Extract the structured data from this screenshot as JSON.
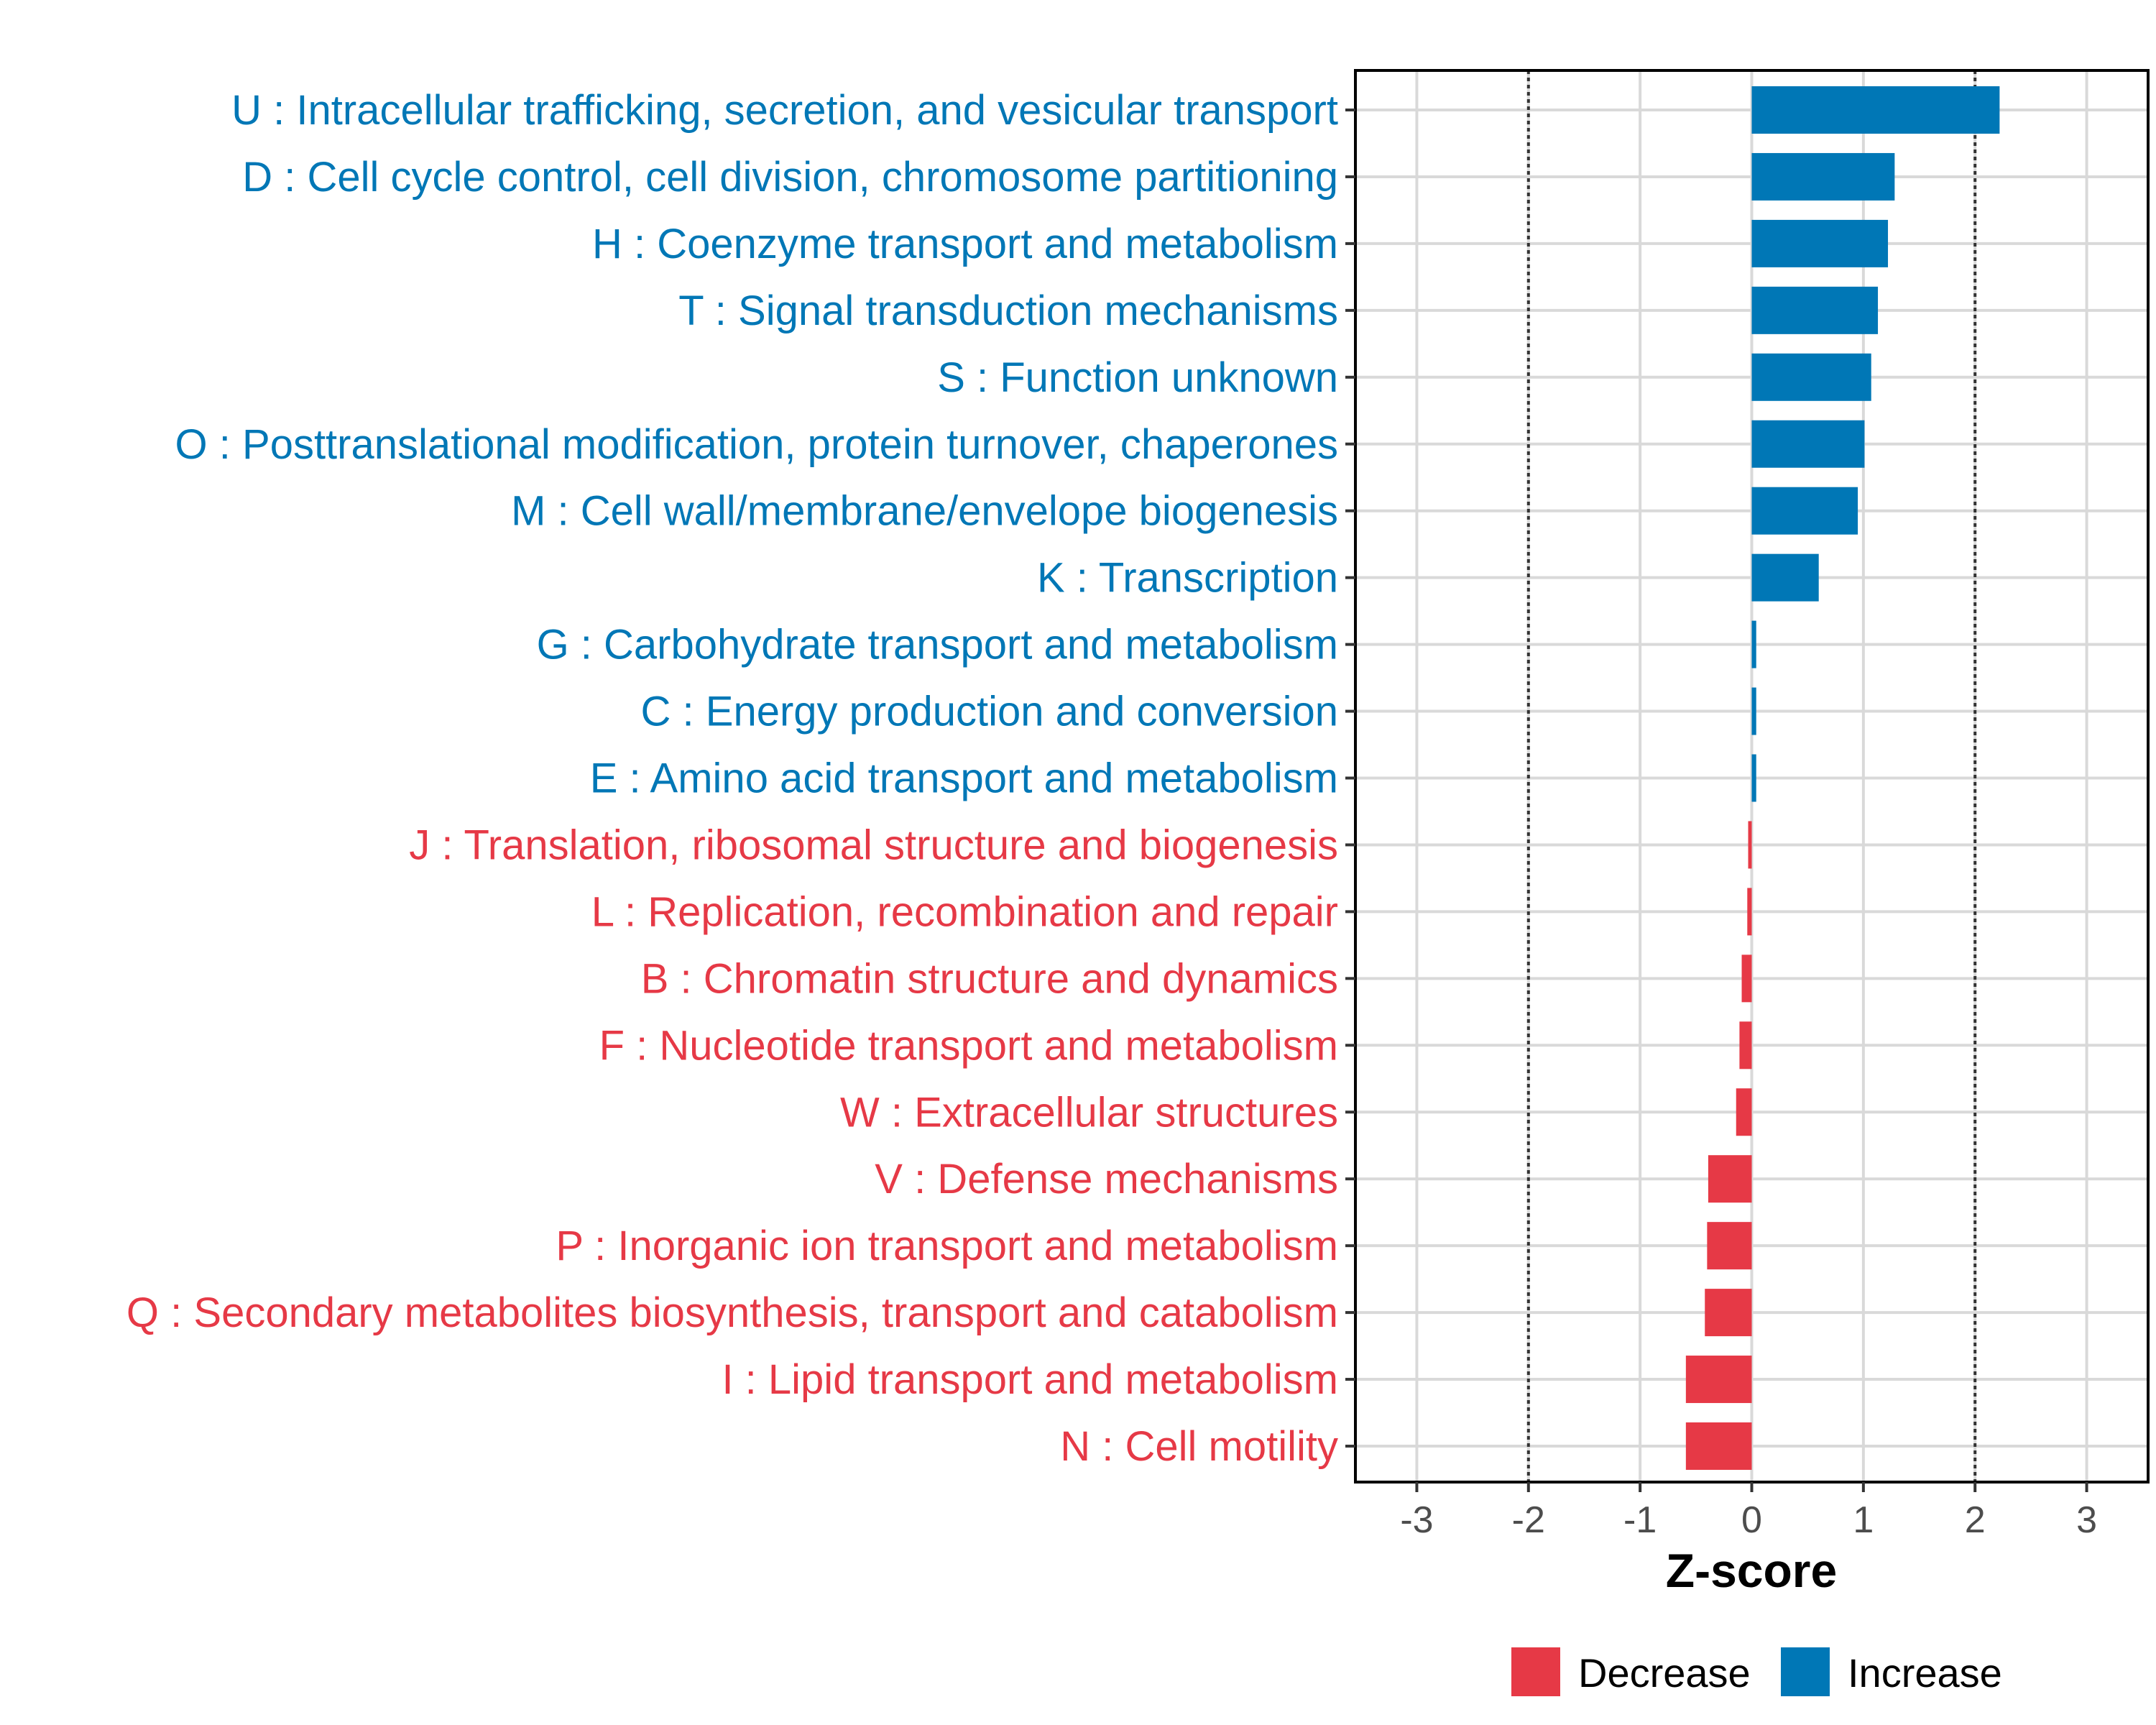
{
  "chart_data": {
    "type": "bar",
    "orientation": "horizontal",
    "xlabel": "Z-score",
    "xlim": [
      -3.55,
      3.55
    ],
    "xticks": [
      -3,
      -2,
      -1,
      0,
      1,
      2,
      3
    ],
    "xtick_labels": [
      "-3",
      "-2",
      "-1",
      "0",
      "1",
      "2",
      "3"
    ],
    "reference_lines": [
      -2,
      2
    ],
    "grid": true,
    "categories": [
      "U : Intracellular trafficking, secretion, and vesicular transport",
      "D : Cell cycle control, cell division, chromosome partitioning",
      "H : Coenzyme transport and metabolism",
      "T : Signal transduction mechanisms",
      "S : Function unknown",
      "O : Posttranslational modification, protein turnover, chaperones",
      "M : Cell wall/membrane/envelope biogenesis",
      "K : Transcription",
      "G : Carbohydrate transport and metabolism",
      "C : Energy production and conversion",
      "E : Amino acid transport and metabolism",
      "J : Translation, ribosomal structure and biogenesis",
      "L : Replication, recombination and repair",
      "B : Chromatin structure and dynamics",
      "F : Nucleotide transport and metabolism",
      "W : Extracellular structures",
      "V : Defense mechanisms",
      "P : Inorganic ion transport and metabolism",
      "Q : Secondary metabolites biosynthesis, transport and catabolism",
      "I : Lipid transport and metabolism",
      "N : Cell motility"
    ],
    "values": [
      2.22,
      1.28,
      1.22,
      1.13,
      1.07,
      1.01,
      0.95,
      0.6,
      0.04,
      0.04,
      0.04,
      -0.02,
      -0.04,
      -0.09,
      -0.11,
      -0.14,
      -0.39,
      -0.4,
      -0.42,
      -0.59,
      -0.59
    ],
    "legend": {
      "position": "bottom",
      "entries": [
        {
          "label": "Decrease",
          "color": "#e63946"
        },
        {
          "label": "Increase",
          "color": "#0077b6"
        }
      ]
    },
    "colors": {
      "increase": "#0077b6",
      "decrease": "#e63946"
    }
  }
}
